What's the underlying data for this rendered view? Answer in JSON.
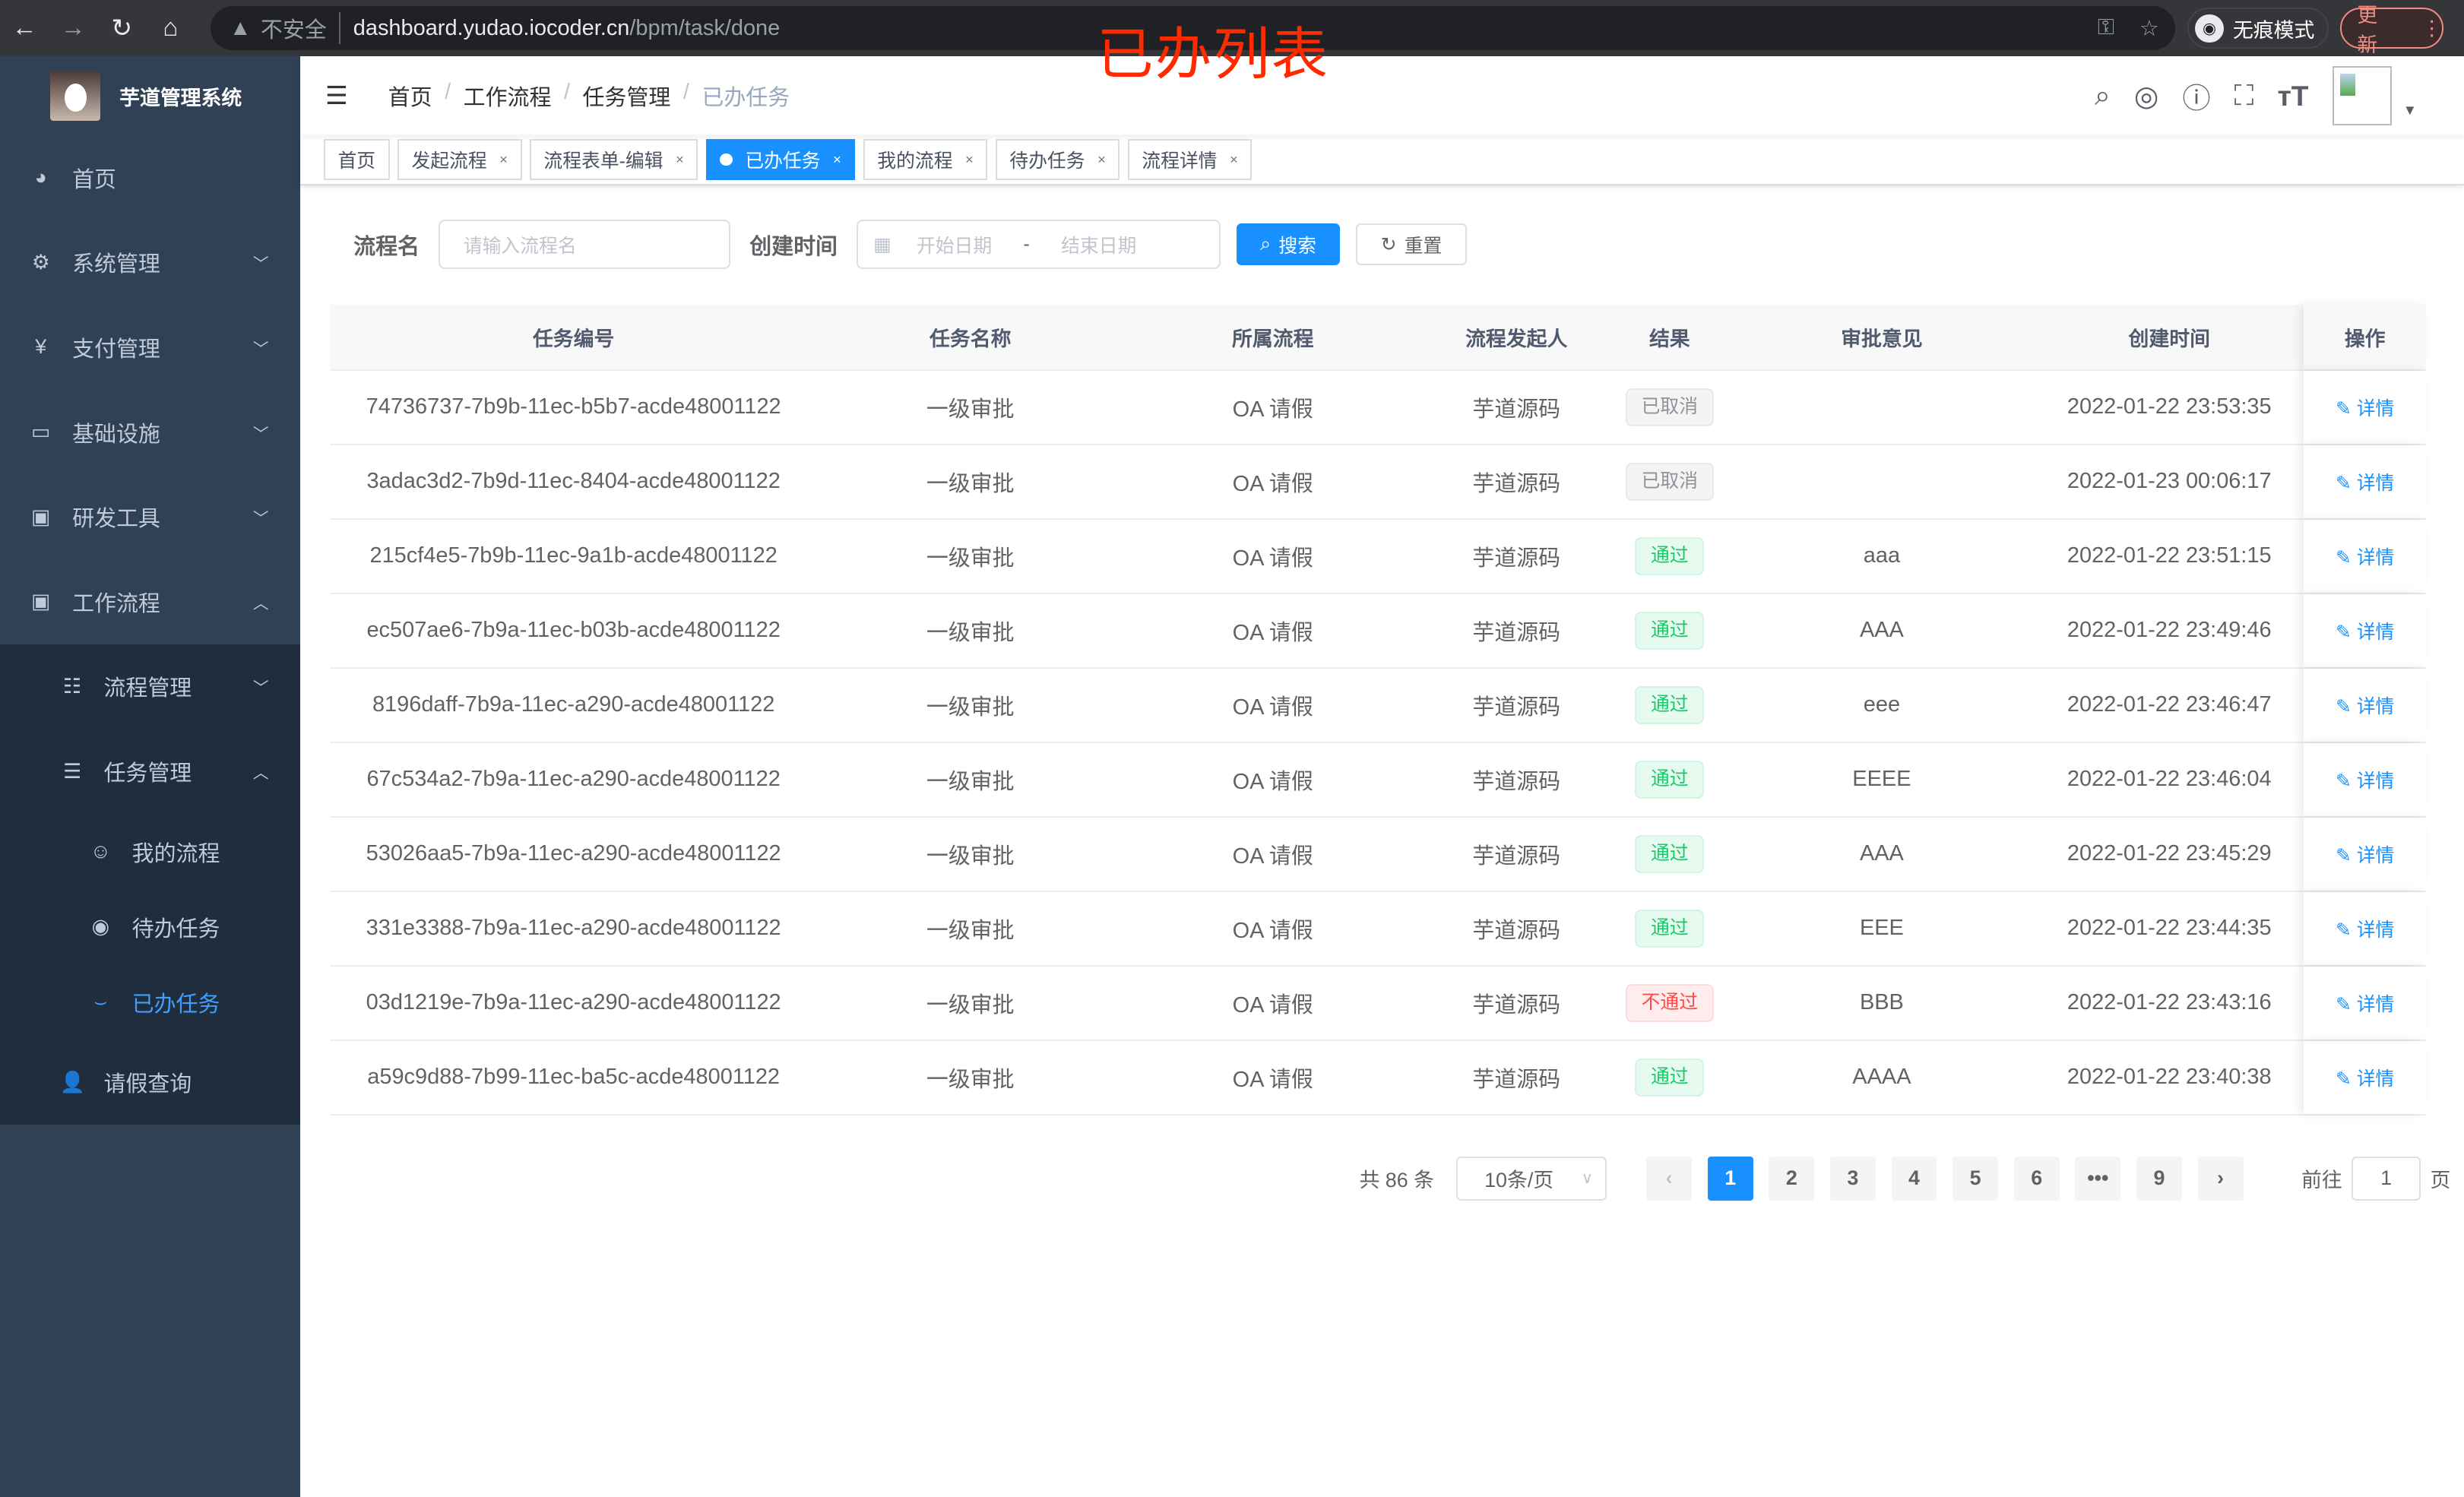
{
  "browser": {
    "not_secure": "不安全",
    "url_host": "dashboard.yudao.iocoder.cn",
    "url_path": "/bpm/task/done",
    "incognito": "无痕模式",
    "update": "更新"
  },
  "annotation": "已办列表",
  "sidebar": {
    "title": "芋道管理系统",
    "items": [
      {
        "label": "首页",
        "icon": "dashboard-icon"
      },
      {
        "label": "系统管理",
        "icon": "gear-icon"
      },
      {
        "label": "支付管理",
        "icon": "yen-icon"
      },
      {
        "label": "基础设施",
        "icon": "monitor-icon"
      },
      {
        "label": "研发工具",
        "icon": "toolbox-icon"
      },
      {
        "label": "工作流程",
        "icon": "toolbox-icon"
      }
    ],
    "workflow_children": [
      {
        "label": "流程管理"
      },
      {
        "label": "任务管理"
      }
    ],
    "task_children": [
      {
        "label": "我的流程"
      },
      {
        "label": "待办任务"
      },
      {
        "label": "已办任务"
      }
    ],
    "leave": "请假查询"
  },
  "breadcrumb": [
    "首页",
    "工作流程",
    "任务管理",
    "已办任务"
  ],
  "tags": [
    {
      "label": "首页"
    },
    {
      "label": "发起流程"
    },
    {
      "label": "流程表单-编辑"
    },
    {
      "label": "已办任务",
      "active": true
    },
    {
      "label": "我的流程"
    },
    {
      "label": "待办任务"
    },
    {
      "label": "流程详情"
    }
  ],
  "filter": {
    "name_label": "流程名",
    "name_placeholder": "请输入流程名",
    "time_label": "创建时间",
    "start_placeholder": "开始日期",
    "sep": "-",
    "end_placeholder": "结束日期",
    "search": "搜索",
    "reset": "重置"
  },
  "table": {
    "headers": [
      "任务编号",
      "任务名称",
      "所属流程",
      "流程发起人",
      "结果",
      "审批意见",
      "创建时间",
      "操作"
    ],
    "op_label": "详情",
    "rows": [
      [
        "74736737-7b9b-11ec-b5b7-acde48001122",
        "一级审批",
        "OA 请假",
        "芋道源码",
        "已取消",
        "",
        "2022-01-22 23:53:35"
      ],
      [
        "3adac3d2-7b9d-11ec-8404-acde48001122",
        "一级审批",
        "OA 请假",
        "芋道源码",
        "已取消",
        "",
        "2022-01-23 00:06:17"
      ],
      [
        "215cf4e5-7b9b-11ec-9a1b-acde48001122",
        "一级审批",
        "OA 请假",
        "芋道源码",
        "通过",
        "aaa",
        "2022-01-22 23:51:15"
      ],
      [
        "ec507ae6-7b9a-11ec-b03b-acde48001122",
        "一级审批",
        "OA 请假",
        "芋道源码",
        "通过",
        "AAA",
        "2022-01-22 23:49:46"
      ],
      [
        "8196daff-7b9a-11ec-a290-acde48001122",
        "一级审批",
        "OA 请假",
        "芋道源码",
        "通过",
        "eee",
        "2022-01-22 23:46:47"
      ],
      [
        "67c534a2-7b9a-11ec-a290-acde48001122",
        "一级审批",
        "OA 请假",
        "芋道源码",
        "通过",
        "EEEE",
        "2022-01-22 23:46:04"
      ],
      [
        "53026aa5-7b9a-11ec-a290-acde48001122",
        "一级审批",
        "OA 请假",
        "芋道源码",
        "通过",
        "AAA",
        "2022-01-22 23:45:29"
      ],
      [
        "331e3388-7b9a-11ec-a290-acde48001122",
        "一级审批",
        "OA 请假",
        "芋道源码",
        "通过",
        "EEE",
        "2022-01-22 23:44:35"
      ],
      [
        "03d1219e-7b9a-11ec-a290-acde48001122",
        "一级审批",
        "OA 请假",
        "芋道源码",
        "不通过",
        "BBB",
        "2022-01-22 23:43:16"
      ],
      [
        "a59c9d88-7b99-11ec-ba5c-acde48001122",
        "一级审批",
        "OA 请假",
        "芋道源码",
        "通过",
        "AAAA",
        "2022-01-22 23:40:38"
      ]
    ]
  },
  "result_colors": {
    "已取消": {
      "fg": "#909399",
      "bg": "#f4f4f5",
      "bd": "#e9e9eb"
    },
    "通过": {
      "fg": "#13ce66",
      "bg": "#e7faf0",
      "bd": "#d0f5e0"
    },
    "不通过": {
      "fg": "#ff4949",
      "bg": "#ffeded",
      "bd": "#ffdbdb"
    }
  },
  "pagination": {
    "total": "共 86 条",
    "page_size": "10条/页",
    "pages": [
      "1",
      "2",
      "3",
      "4",
      "5",
      "6",
      "•••",
      "9"
    ],
    "current": "1",
    "goto_label": "前往",
    "goto_value": "1",
    "page_suffix": "页"
  }
}
